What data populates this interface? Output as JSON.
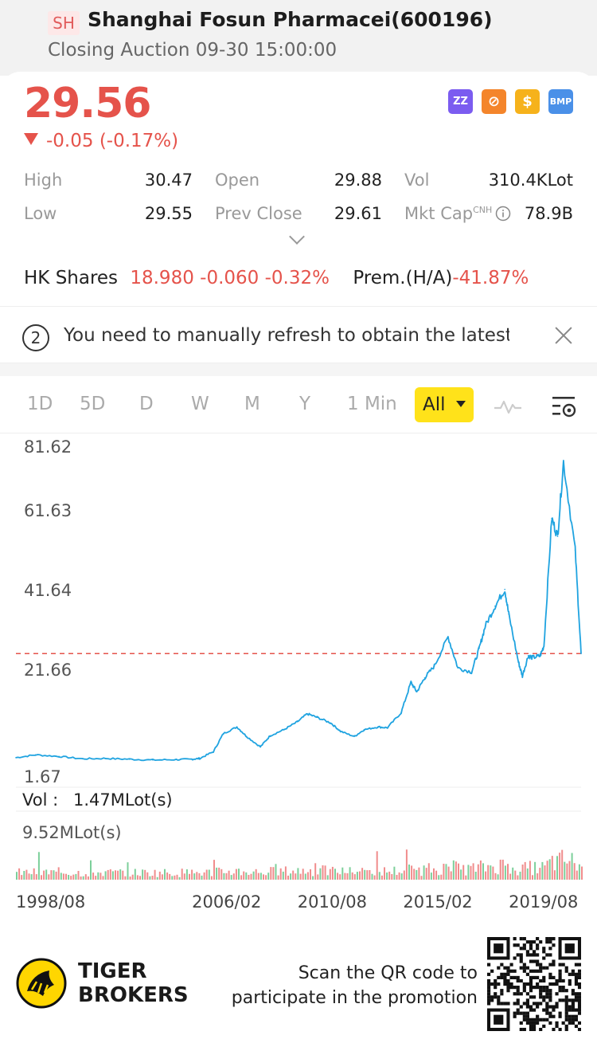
{
  "header": {
    "exchange": "SH",
    "title": "Shanghai Fosun Pharmacei(600196)",
    "subtitle": "Closing Auction 09-30 15:00:00"
  },
  "quote": {
    "price": "29.56",
    "change": "-0.05 (-0.17%)",
    "color_down": "#e5534b"
  },
  "badges": [
    {
      "icon": "zz-icon",
      "label": "ZZ",
      "color": "#7b5cf0"
    },
    {
      "icon": "no-icon",
      "label": "⊘",
      "color": "#f4852b"
    },
    {
      "icon": "dollar-icon",
      "label": "$",
      "color": "#f6b21b"
    },
    {
      "icon": "bmp-icon",
      "label": "BMP",
      "color": "#4a90e8"
    }
  ],
  "stats": {
    "high_label": "High",
    "high": "30.47",
    "open_label": "Open",
    "open": "29.88",
    "vol_label": "Vol",
    "vol": "310.4KLot",
    "low_label": "Low",
    "low": "29.55",
    "prev_label": "Prev Close",
    "prev": "29.61",
    "mktcap_label": "Mkt Cap",
    "mktcap_sup": "CNH",
    "mktcap": "78.9B"
  },
  "hk": {
    "label": "HK Shares",
    "price": "18.980",
    "change": "-0.060",
    "pct": "-0.32%",
    "prem_label": "Prem.(H/A)",
    "prem": "-41.87%"
  },
  "notice": {
    "number": "2",
    "text": "You need to manually refresh to obtain the latest"
  },
  "tabs": [
    "1D",
    "5D",
    "D",
    "W",
    "M",
    "Y",
    "1 Min"
  ],
  "active_tab": "All",
  "chart_data": {
    "type": "line",
    "y_ticks": [
      "81.62",
      "61.63",
      "41.64",
      "21.66",
      "1.67"
    ],
    "x_ticks": [
      "1998/08",
      "2006/02",
      "2010/08",
      "2015/02",
      "2019/08"
    ],
    "ylim": [
      1.67,
      81.62
    ],
    "reference_price": 29.61,
    "line_color": "#1fa3e0",
    "x": [
      "1998/08",
      "1999/06",
      "2000/06",
      "2001/06",
      "2002/06",
      "2003/06",
      "2004/06",
      "2005/06",
      "2006/02",
      "2006/06",
      "2007/01",
      "2007/06",
      "2008/01",
      "2008/06",
      "2009/01",
      "2009/06",
      "2010/01",
      "2010/08",
      "2011/01",
      "2011/06",
      "2012/01",
      "2012/06",
      "2013/01",
      "2013/06",
      "2014/01",
      "2014/06",
      "2015/01",
      "2015/06",
      "2015/09",
      "2016/01",
      "2016/06",
      "2017/01",
      "2017/06",
      "2018/01",
      "2018/05",
      "2018/08",
      "2019/01",
      "2019/06",
      "2019/08",
      "2020/01",
      "2020/03",
      "2020/06",
      "2020/08",
      "2020/12",
      "2021/02",
      "2021/06",
      "2021/09",
      "2021/12",
      "2022/06",
      "2022/09"
    ],
    "values": [
      3.5,
      4.2,
      3.8,
      3.2,
      3.3,
      3.1,
      2.9,
      3.0,
      3.1,
      3.3,
      5.0,
      9.5,
      11.2,
      8.8,
      6.2,
      9.0,
      10.5,
      12.5,
      14.5,
      13.6,
      12.2,
      10.1,
      8.8,
      10.5,
      11.2,
      11.0,
      14.8,
      22.4,
      20.0,
      23.5,
      26.5,
      33.8,
      26.0,
      25.0,
      31.0,
      36.5,
      41.5,
      45.7,
      39.5,
      27.4,
      24.0,
      29.1,
      28.6,
      29.0,
      31.5,
      63.5,
      59.0,
      77.7,
      55.5,
      29.6
    ],
    "vol_label": "Vol :",
    "vol_value": "1.47MLot(s)",
    "vol_max": "9.52MLot(s)",
    "vol_colors": [
      "#f08c8c",
      "#7ccf9a"
    ]
  },
  "footer": {
    "brand_line1": "TIGER",
    "brand_line2": "BROKERS",
    "promo_line1": "Scan the QR code to",
    "promo_line2": "participate in the promotion"
  }
}
